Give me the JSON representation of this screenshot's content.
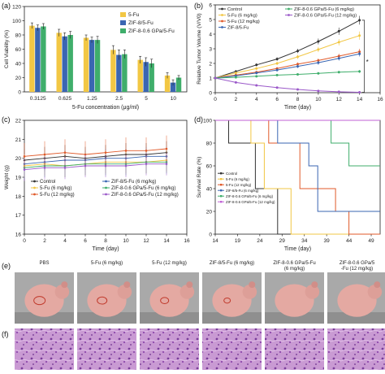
{
  "chart_data": [
    {
      "panel_label": "(a)",
      "type": "bar",
      "xlabel": "5-Fu concentration (μg/ml)",
      "ylabel": "Cell Viability (%)",
      "ylim": [
        0,
        120
      ],
      "yticks": [
        0,
        20,
        40,
        60,
        80,
        100,
        120
      ],
      "categories": [
        "0.3125",
        "0.625",
        "1.25",
        "2.5",
        "5",
        "10"
      ],
      "legend_position": "top-right",
      "series": [
        {
          "name": "5-Fu",
          "color": "#f2c744",
          "values": [
            93,
            83,
            76,
            59,
            45,
            23
          ],
          "errors": [
            4,
            5,
            4,
            6,
            5,
            4
          ]
        },
        {
          "name": "ZIF-8/5-Fu",
          "color": "#3a66b2",
          "values": [
            90,
            78,
            73,
            52,
            42,
            13
          ],
          "errors": [
            4,
            5,
            4,
            7,
            6,
            4
          ]
        },
        {
          "name": "ZIF-8-0.6 GPa/5-Fu",
          "color": "#3fae6b",
          "values": [
            92,
            80,
            73,
            53,
            40,
            20
          ],
          "errors": [
            4,
            5,
            5,
            6,
            6,
            3
          ]
        }
      ]
    },
    {
      "panel_label": "(b)",
      "type": "line",
      "xlabel": "Time (day)",
      "ylabel": "Relative Tumor Volume (V/V0)",
      "xlim": [
        0,
        16
      ],
      "ylim": [
        0,
        6
      ],
      "xticks": [
        0,
        2,
        4,
        6,
        8,
        10,
        12,
        14,
        16
      ],
      "yticks": [
        0,
        1,
        2,
        3,
        4,
        5,
        6
      ],
      "x": [
        0,
        2,
        4,
        6,
        8,
        10,
        12,
        14
      ],
      "annotation": "*",
      "series": [
        {
          "name": "Control",
          "color": "#333333",
          "values": [
            1.0,
            1.45,
            1.9,
            2.3,
            2.85,
            3.5,
            4.2,
            4.95
          ],
          "errors": [
            0,
            0.08,
            0.1,
            0.12,
            0.15,
            0.2,
            0.25,
            0.3
          ]
        },
        {
          "name": "5-Fu (6 mg/kg)",
          "color": "#f2c744",
          "values": [
            1.0,
            1.35,
            1.65,
            2.0,
            2.45,
            2.95,
            3.45,
            3.9
          ],
          "errors": [
            0,
            0.08,
            0.1,
            0.12,
            0.15,
            0.18,
            0.22,
            0.28
          ]
        },
        {
          "name": "5-Fu (12 mg/kg)",
          "color": "#e05a2a",
          "values": [
            1.0,
            1.2,
            1.4,
            1.65,
            1.95,
            2.2,
            2.5,
            2.8
          ],
          "errors": [
            0,
            0.06,
            0.08,
            0.1,
            0.12,
            0.14,
            0.16,
            0.2
          ]
        },
        {
          "name": "ZIF-8/5-Fu",
          "color": "#3a66b2",
          "values": [
            1.0,
            1.15,
            1.35,
            1.55,
            1.8,
            2.05,
            2.35,
            2.65
          ],
          "errors": [
            0,
            0.06,
            0.08,
            0.1,
            0.12,
            0.14,
            0.16,
            0.18
          ]
        },
        {
          "name": "ZIF-8-0.6 GPa/5-Fu (6 mg/kg)",
          "color": "#3fae6b",
          "values": [
            1.0,
            1.05,
            1.12,
            1.2,
            1.25,
            1.32,
            1.4,
            1.45
          ],
          "errors": [
            0,
            0.04,
            0.05,
            0.06,
            0.07,
            0.08,
            0.09,
            0.1
          ]
        },
        {
          "name": "ZIF-8-0.6 GPa/5-Fu (12 mg/kg)",
          "color": "#9b59c9",
          "values": [
            1.0,
            0.7,
            0.5,
            0.35,
            0.22,
            0.12,
            0.06,
            0.03
          ],
          "errors": [
            0,
            0.03,
            0.03,
            0.03,
            0.02,
            0.02,
            0.01,
            0.01
          ]
        }
      ]
    },
    {
      "panel_label": "(c)",
      "type": "line",
      "xlabel": "Time (day)",
      "ylabel": "Weight (g)",
      "xlim": [
        0,
        16
      ],
      "ylim": [
        16,
        22
      ],
      "xticks": [
        0,
        2,
        4,
        6,
        8,
        10,
        12,
        14,
        16
      ],
      "yticks": [
        16,
        17,
        18,
        19,
        20,
        21,
        22
      ],
      "x": [
        0,
        2,
        4,
        6,
        8,
        10,
        12,
        14
      ],
      "legend_position": "bottom",
      "series": [
        {
          "name": "Control",
          "color": "#333333",
          "values": [
            19.9,
            20.0,
            20.1,
            20.0,
            20.1,
            20.2,
            20.2,
            20.3
          ],
          "errors": [
            0.6,
            0.6,
            0.6,
            0.6,
            0.6,
            0.6,
            0.6,
            0.6
          ]
        },
        {
          "name": "ZIF-8/5-Fu (6 mg/kg)",
          "color": "#3a66b2",
          "values": [
            19.7,
            19.8,
            19.9,
            19.9,
            20.0,
            20.0,
            20.1,
            20.1
          ],
          "errors": [
            0.5,
            0.5,
            0.5,
            0.5,
            0.5,
            0.5,
            0.5,
            0.5
          ]
        },
        {
          "name": "5-Fu (6 mg/kg)",
          "color": "#f2c744",
          "values": [
            19.6,
            19.7,
            19.6,
            19.7,
            19.8,
            19.8,
            19.8,
            19.9
          ],
          "errors": [
            0.6,
            0.6,
            0.6,
            0.6,
            0.6,
            0.6,
            0.6,
            0.6
          ]
        },
        {
          "name": "ZIF-8-0.6 GPa/5-Fu (6 mg/kg)",
          "color": "#3fae6b",
          "values": [
            19.5,
            19.6,
            19.6,
            19.7,
            19.7,
            19.7,
            19.8,
            19.8
          ],
          "errors": [
            0.6,
            0.6,
            0.6,
            0.6,
            0.6,
            0.6,
            0.6,
            0.6
          ]
        },
        {
          "name": "5-Fu (12 mg/kg)",
          "color": "#e05a2a",
          "values": [
            20.1,
            20.2,
            20.3,
            20.2,
            20.3,
            20.4,
            20.4,
            20.5
          ],
          "errors": [
            0.7,
            0.7,
            0.7,
            0.7,
            0.7,
            0.7,
            0.7,
            0.7
          ]
        },
        {
          "name": "ZIF-8-0.6 GPa/5-Fu (12 mg/kg)",
          "color": "#9b59c9",
          "values": [
            19.4,
            19.5,
            19.5,
            19.6,
            19.6,
            19.6,
            19.7,
            19.7
          ],
          "errors": [
            0.6,
            0.6,
            0.6,
            0.6,
            0.6,
            0.6,
            0.6,
            0.6
          ]
        }
      ]
    },
    {
      "panel_label": "(d)",
      "type": "line",
      "step": true,
      "xlabel": "Time (day)",
      "ylabel": "Survival Rate (%)",
      "xlim": [
        14,
        51
      ],
      "ylim": [
        0,
        100
      ],
      "xticks": [
        14,
        19,
        24,
        29,
        34,
        39,
        44,
        49
      ],
      "yticks": [
        0,
        20,
        40,
        60,
        80,
        100
      ],
      "legend_position": "bottom-left",
      "series": [
        {
          "name": "Control",
          "color": "#333333",
          "points": [
            [
              14,
              100
            ],
            [
              17,
              100
            ],
            [
              17,
              80
            ],
            [
              23,
              80
            ],
            [
              23,
              40
            ],
            [
              28,
              40
            ],
            [
              28,
              0
            ],
            [
              51,
              0
            ]
          ]
        },
        {
          "name": "5-Fu (6 mg/kg)",
          "color": "#f2c744",
          "points": [
            [
              14,
              100
            ],
            [
              22,
              100
            ],
            [
              22,
              80
            ],
            [
              25,
              80
            ],
            [
              25,
              40
            ],
            [
              31,
              40
            ],
            [
              31,
              0
            ],
            [
              51,
              0
            ]
          ]
        },
        {
          "name": "5-Fu (12 mg/kg)",
          "color": "#e05a2a",
          "points": [
            [
              14,
              100
            ],
            [
              26,
              100
            ],
            [
              26,
              80
            ],
            [
              33,
              80
            ],
            [
              33,
              40
            ],
            [
              41,
              40
            ],
            [
              41,
              20
            ],
            [
              44,
              20
            ],
            [
              44,
              0
            ],
            [
              51,
              0
            ]
          ]
        },
        {
          "name": "ZIF-8/5-Fu (6 mg/kg)",
          "color": "#3a66b2",
          "points": [
            [
              14,
              100
            ],
            [
              28,
              100
            ],
            [
              28,
              80
            ],
            [
              35,
              80
            ],
            [
              35,
              60
            ],
            [
              37,
              60
            ],
            [
              37,
              20
            ],
            [
              51,
              20
            ]
          ]
        },
        {
          "name": "ZIF-8-0.6 GPa/5-Fu (6 mg/kg)",
          "color": "#3fae6b",
          "points": [
            [
              14,
              100
            ],
            [
              40,
              100
            ],
            [
              40,
              80
            ],
            [
              44,
              80
            ],
            [
              44,
              60
            ],
            [
              51,
              60
            ]
          ]
        },
        {
          "name": "ZIF-8-0.6 GPa/5-Fu (12 mg/kg)",
          "color": "#c061d6",
          "points": [
            [
              14,
              100
            ],
            [
              51,
              100
            ]
          ]
        }
      ]
    }
  ],
  "photos": {
    "panel_e_label": "(e)",
    "panel_f_label": "(f)",
    "groups": [
      {
        "label_lines": [
          "PBS"
        ]
      },
      {
        "label_lines": [
          "5-Fu (6 mg/kg)"
        ]
      },
      {
        "label_lines": [
          "5-Fu (12 mg/kg)"
        ]
      },
      {
        "label_lines": [
          "ZIF-8/5-Fu (6 mg/kg)"
        ]
      },
      {
        "label_lines": [
          "ZIF-8-0.6 GPa/5-Fu",
          "(6 mg/kg)"
        ]
      },
      {
        "label_lines": [
          "ZIF-8-0.6 GPa/5",
          "-Fu (12 mg/kg)"
        ]
      }
    ]
  }
}
